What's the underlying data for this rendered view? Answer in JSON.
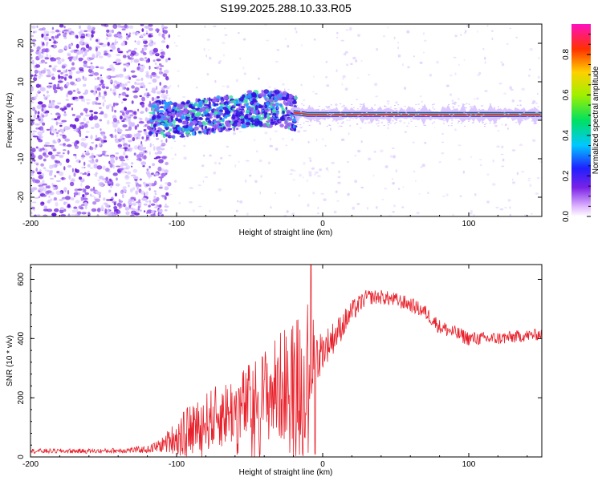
{
  "title": "S199.2025.288.10.33.R05",
  "colors": {
    "snr_line": "#e8202a",
    "ridge_hot": "#ff2030",
    "ridge_mid": "#40e0a0",
    "ridge_edge": "#3010e0",
    "scatter_light": "#d7c2ff",
    "scatter_mid": "#9a5cf0",
    "scatter_dark": "#6a1bdd"
  },
  "chart_data": [
    {
      "type": "heatmap",
      "name": "spectrogram",
      "xlabel": "Height of straight line (km)",
      "ylabel": "Frequency (Hz)",
      "xlim": [
        -200,
        150
      ],
      "ylim": [
        -25,
        25
      ],
      "x_ticks": [
        -200,
        -100,
        0,
        100
      ],
      "x_tick_labels": [
        "-200",
        "-100",
        "0",
        "100"
      ],
      "y_ticks": [
        -20,
        -10,
        0,
        10,
        20
      ],
      "y_tick_labels": [
        "-20",
        "-10",
        "0",
        "10",
        "20"
      ],
      "ridge": {
        "description_x": [
          -120,
          -100,
          -80,
          -60,
          -50,
          -40,
          -30,
          -20,
          -10,
          0,
          50,
          100,
          150
        ],
        "frequency_hz": [
          1,
          0,
          1,
          2,
          3,
          3,
          3,
          2,
          1.5,
          1.5,
          1.5,
          1.5,
          1.5
        ]
      },
      "colorbar": {
        "label": "Normalized spectral amplitude",
        "range": [
          0,
          0.95
        ],
        "ticks": [
          0.0,
          0.2,
          0.4,
          0.6,
          0.8
        ],
        "tick_labels": [
          "0.0",
          "0.2",
          "0.4",
          "0.6",
          "0.8"
        ]
      }
    },
    {
      "type": "line",
      "name": "snr",
      "xlabel": "Height of straight line (km)",
      "ylabel": "SNR (10 * v/v)",
      "xlim": [
        -200,
        150
      ],
      "ylim": [
        0,
        650
      ],
      "x_ticks": [
        -200,
        -100,
        0,
        100
      ],
      "x_tick_labels": [
        "-200",
        "-100",
        "0",
        "100"
      ],
      "y_ticks": [
        0,
        200,
        400,
        600
      ],
      "y_tick_labels": [
        "0",
        "200",
        "400",
        "600"
      ],
      "envelope": {
        "x": [
          -200,
          -150,
          -120,
          -110,
          -100,
          -90,
          -80,
          -70,
          -60,
          -50,
          -40,
          -30,
          -25,
          -20,
          -15,
          -10,
          -5,
          0,
          5,
          10,
          20,
          30,
          40,
          50,
          60,
          70,
          80,
          90,
          100,
          110,
          120,
          130,
          140,
          150
        ],
        "mean": [
          20,
          20,
          25,
          40,
          70,
          100,
          120,
          140,
          160,
          180,
          210,
          230,
          250,
          270,
          280,
          300,
          330,
          360,
          390,
          420,
          490,
          540,
          540,
          530,
          515,
          490,
          440,
          420,
          400,
          400,
          400,
          405,
          410,
          415
        ],
        "spread": [
          8,
          8,
          12,
          25,
          60,
          80,
          100,
          110,
          120,
          140,
          160,
          190,
          200,
          210,
          220,
          240,
          120,
          60,
          60,
          50,
          40,
          25,
          25,
          25,
          25,
          25,
          25,
          25,
          25,
          22,
          22,
          22,
          20,
          20
        ]
      },
      "peak": {
        "x": -8,
        "y": 650
      }
    }
  ]
}
